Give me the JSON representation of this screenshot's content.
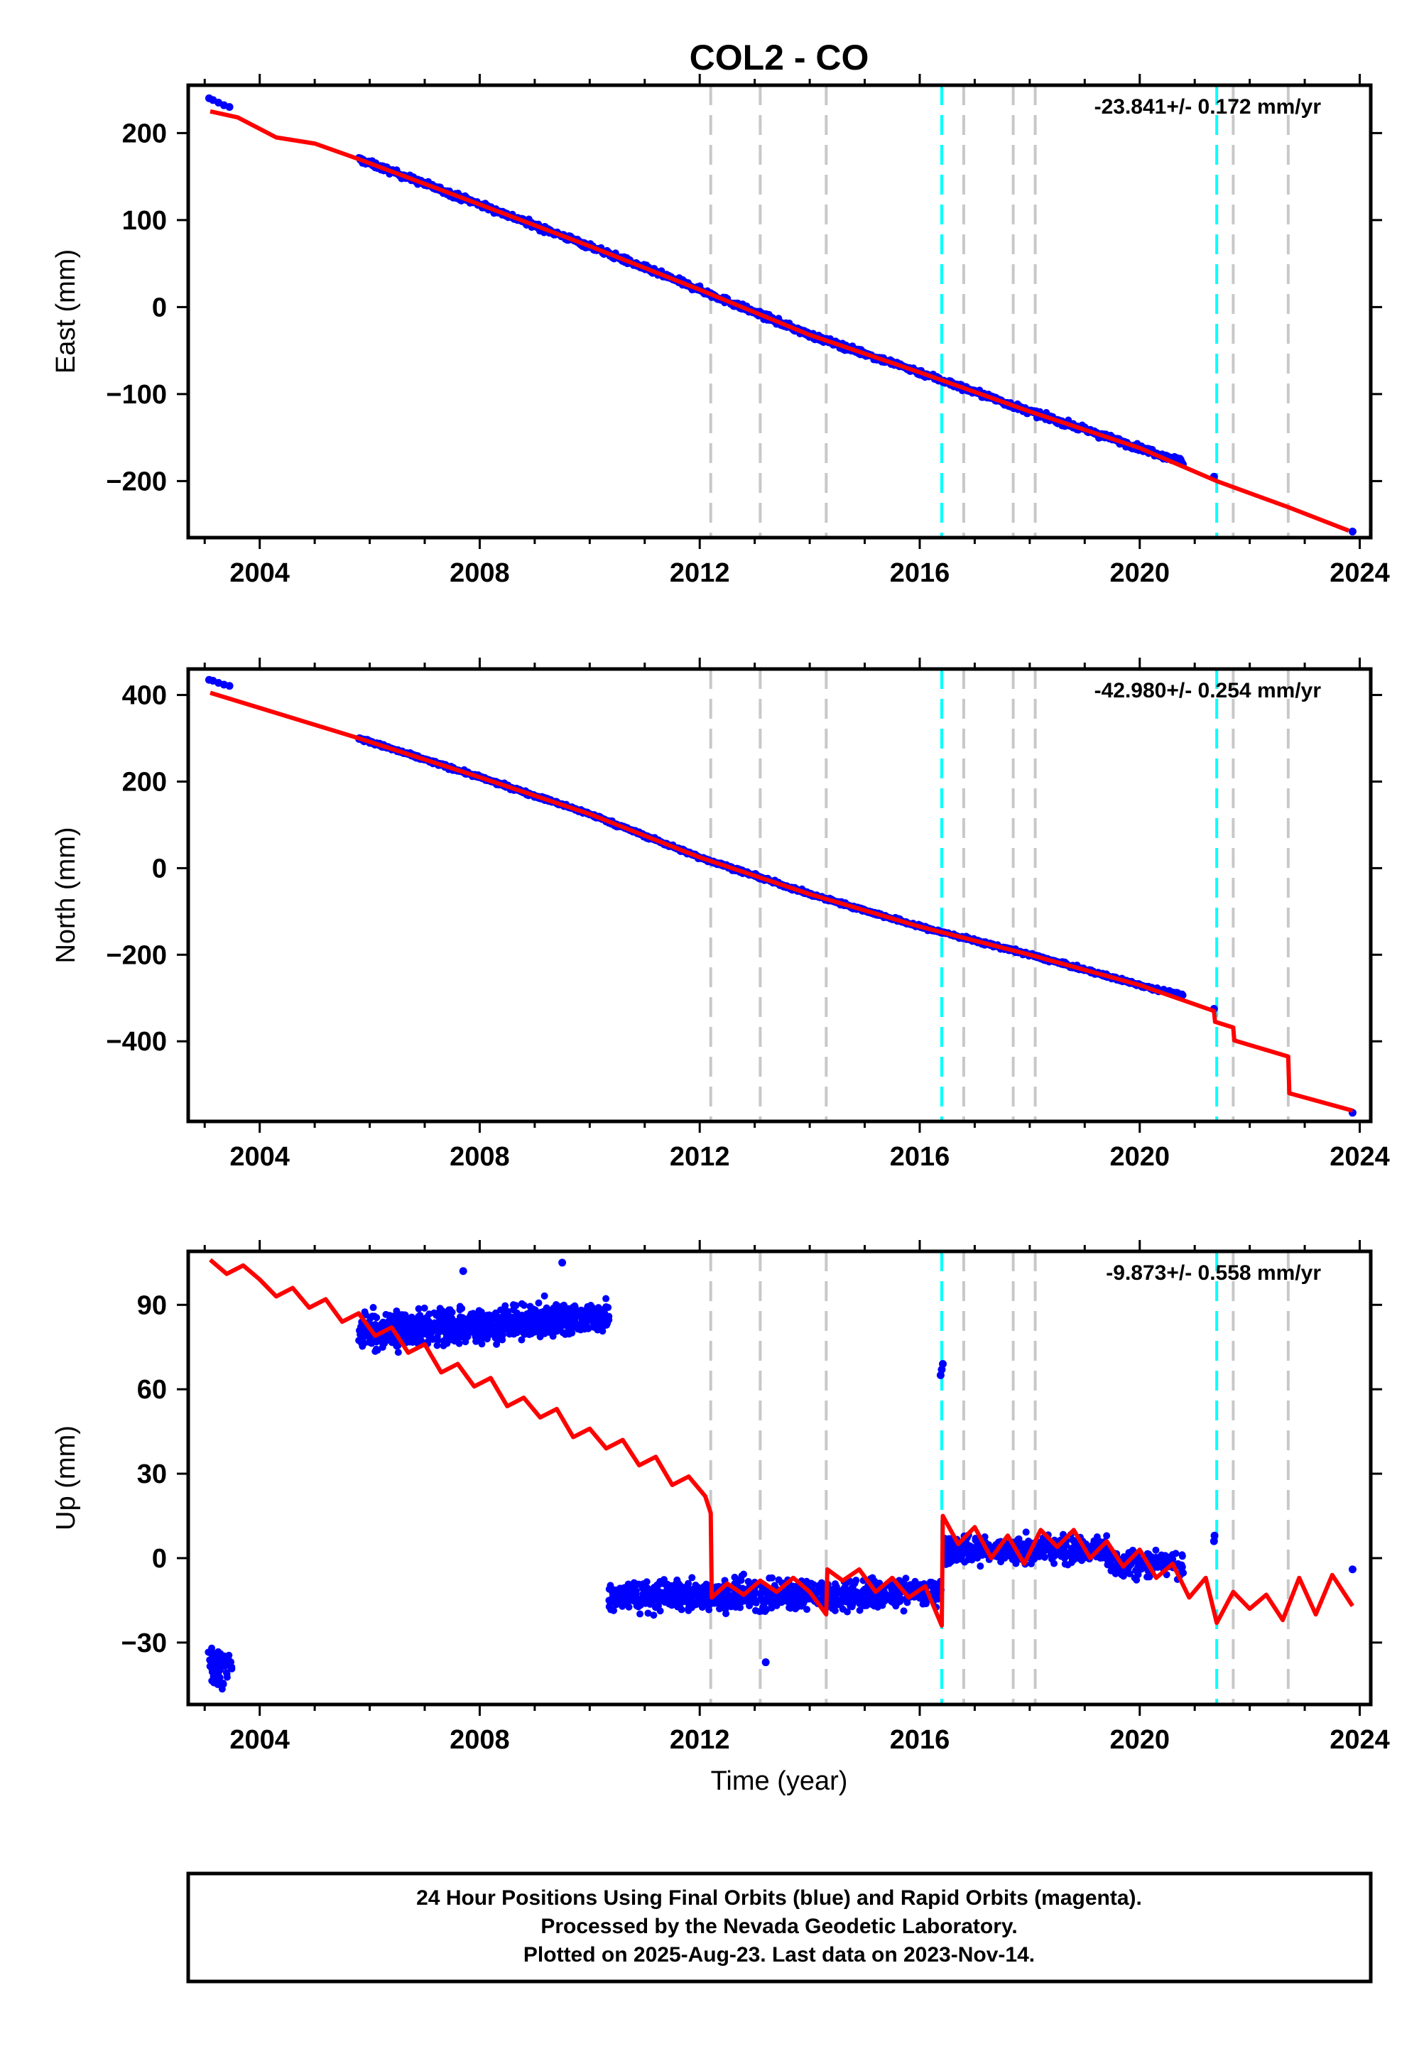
{
  "title": "COL2 - CO",
  "xlabel": "Time (year)",
  "footer": {
    "line1": "24 Hour Positions Using Final Orbits (blue) and Rapid Orbits (magenta).",
    "line2": "Processed by the Nevada Geodetic Laboratory.",
    "line3": "Plotted on 2025-Aug-23. Last data on 2023-Nov-14."
  },
  "colors": {
    "data": "#0000ff",
    "model": "#ff0000",
    "equipment_line": "#c8c8c8",
    "earthquake_line": "#00ffff"
  },
  "chart_data": [
    {
      "type": "scatter",
      "id": "east",
      "ylabel": "East (mm)",
      "rate_label": "-23.841+/- 0.172 mm/yr",
      "xlim": [
        2002.7,
        2024.2
      ],
      "ylim": [
        -265,
        255
      ],
      "xticks": [
        2004,
        2008,
        2012,
        2016,
        2020,
        2024
      ],
      "yticks": [
        -200,
        -100,
        0,
        100,
        200
      ],
      "equipment_changes": [
        2012.2,
        2013.1,
        2014.3,
        2016.8,
        2017.7,
        2018.1,
        2021.7,
        2022.7
      ],
      "earthquakes": [
        2016.4,
        2021.4
      ],
      "series": [
        {
          "kind": "points",
          "x": [
            2003.08,
            2003.15,
            2003.25,
            2003.35,
            2003.45
          ],
          "y": [
            240,
            238,
            235,
            232,
            230
          ]
        },
        {
          "kind": "band",
          "x": [
            2005.8,
            2008.0,
            2010.0,
            2012.0,
            2014.0,
            2016.0,
            2018.0,
            2020.0,
            2020.8
          ],
          "y": [
            170,
            118,
            70,
            20,
            -32,
            -75,
            -120,
            -162,
            -178
          ],
          "spread": 6
        },
        {
          "kind": "points",
          "x": [
            2021.35,
            2023.87
          ],
          "y": [
            -195,
            -258
          ]
        },
        {
          "kind": "line",
          "name": "model",
          "x": [
            2003.1,
            2003.6,
            2004.3,
            2005.0,
            2005.8,
            2008.0,
            2010.0,
            2012.0,
            2014.0,
            2016.0,
            2018.0,
            2020.0,
            2021.4,
            2022.7,
            2023.8
          ],
          "y": [
            225,
            218,
            195,
            188,
            170,
            118,
            70,
            20,
            -32,
            -75,
            -120,
            -162,
            -200,
            -230,
            -257
          ]
        }
      ]
    },
    {
      "type": "scatter",
      "id": "north",
      "ylabel": "North (mm)",
      "rate_label": "-42.980+/- 0.254 mm/yr",
      "xlim": [
        2002.7,
        2024.2
      ],
      "ylim": [
        -585,
        460
      ],
      "xticks": [
        2004,
        2008,
        2012,
        2016,
        2020,
        2024
      ],
      "yticks": [
        -400,
        -200,
        0,
        200,
        400
      ],
      "equipment_changes": [
        2012.2,
        2013.1,
        2014.3,
        2016.8,
        2017.7,
        2018.1,
        2021.7,
        2022.7
      ],
      "earthquakes": [
        2016.4,
        2021.4
      ],
      "series": [
        {
          "kind": "points",
          "x": [
            2003.08,
            2003.15,
            2003.25,
            2003.35,
            2003.45
          ],
          "y": [
            435,
            433,
            428,
            424,
            421
          ]
        },
        {
          "kind": "band",
          "x": [
            2005.8,
            2008.0,
            2010.0,
            2012.0,
            2014.0,
            2016.0,
            2018.0,
            2020.0,
            2020.8
          ],
          "y": [
            300,
            210,
            125,
            25,
            -60,
            -135,
            -200,
            -270,
            -295
          ],
          "spread": 7
        },
        {
          "kind": "points",
          "x": [
            2021.35,
            2023.87
          ],
          "y": [
            -325,
            -565
          ]
        },
        {
          "kind": "line",
          "name": "model",
          "x": [
            2003.1,
            2005.8,
            2008.0,
            2010.0,
            2012.0,
            2014.0,
            2016.0,
            2018.0,
            2020.0,
            2021.35,
            2021.37,
            2021.7,
            2021.72,
            2022.7,
            2022.72,
            2023.87
          ],
          "y": [
            405,
            300,
            210,
            125,
            25,
            -60,
            -135,
            -200,
            -270,
            -330,
            -355,
            -368,
            -398,
            -435,
            -520,
            -560
          ]
        }
      ]
    },
    {
      "type": "scatter",
      "id": "up",
      "ylabel": "Up (mm)",
      "rate_label": "-9.873+/- 0.558 mm/yr",
      "xlim": [
        2002.7,
        2024.2
      ],
      "ylim": [
        -52,
        109
      ],
      "xticks": [
        2004,
        2008,
        2012,
        2016,
        2020,
        2024
      ],
      "yticks": [
        -30,
        0,
        30,
        60,
        90
      ],
      "equipment_changes": [
        2012.2,
        2013.1,
        2014.3,
        2016.8,
        2017.7,
        2018.1,
        2021.7,
        2022.7
      ],
      "earthquakes": [
        2016.4,
        2021.4
      ],
      "series": [
        {
          "kind": "cloud",
          "x0": 2003.05,
          "x1": 2003.5,
          "y": -38,
          "spread": 11,
          "n": 60
        },
        {
          "kind": "cloud",
          "x0": 2005.8,
          "x1": 2010.35,
          "y": 83,
          "spread": 10,
          "n": 900,
          "slope": 1.2
        },
        {
          "kind": "cloud",
          "x0": 2010.35,
          "x1": 2016.4,
          "y": -13,
          "spread": 9,
          "n": 900,
          "slope": 0.2
        },
        {
          "kind": "cloud",
          "x0": 2016.45,
          "x1": 2019.4,
          "y": 3,
          "spread": 8,
          "n": 450
        },
        {
          "kind": "cloud",
          "x0": 2019.4,
          "x1": 2020.8,
          "y": -2,
          "spread": 8,
          "n": 150
        },
        {
          "kind": "points",
          "x": [
            2016.38,
            2016.4,
            2016.42,
            2021.35,
            2021.36,
            2023.87,
            2013.2,
            2007.7,
            2009.5
          ],
          "y": [
            65,
            67,
            69,
            6,
            8,
            -4,
            -37,
            102,
            105
          ]
        },
        {
          "kind": "line",
          "name": "model",
          "x": [
            2003.1,
            2003.4,
            2003.7,
            2004.0,
            2004.3,
            2004.6,
            2004.9,
            2005.2,
            2005.5,
            2005.8,
            2006.1,
            2006.4,
            2006.7,
            2007.0,
            2007.3,
            2007.6,
            2007.9,
            2008.2,
            2008.5,
            2008.8,
            2009.1,
            2009.4,
            2009.7,
            2010.0,
            2010.3,
            2010.6,
            2010.9,
            2011.2,
            2011.5,
            2011.8,
            2012.1,
            2012.2,
            2012.22,
            2012.5,
            2012.8,
            2013.1,
            2013.4,
            2013.7,
            2014.0,
            2014.3,
            2014.32,
            2014.6,
            2014.9,
            2015.2,
            2015.5,
            2015.8,
            2016.1,
            2016.4,
            2016.42,
            2016.7,
            2017.0,
            2017.3,
            2017.6,
            2017.9,
            2018.2,
            2018.5,
            2018.8,
            2019.1,
            2019.4,
            2019.7,
            2020.0,
            2020.3,
            2020.6,
            2020.9,
            2021.2,
            2021.4,
            2021.7,
            2022.0,
            2022.3,
            2022.6,
            2022.9,
            2023.2,
            2023.5,
            2023.87
          ],
          "y": [
            106,
            101,
            104,
            99,
            93,
            96,
            89,
            92,
            84,
            87,
            79,
            82,
            73,
            76,
            66,
            69,
            61,
            64,
            54,
            57,
            50,
            53,
            43,
            46,
            39,
            42,
            33,
            36,
            26,
            29,
            22,
            16,
            -14,
            -9,
            -13,
            -8,
            -12,
            -7,
            -12,
            -20,
            -4,
            -8,
            -4,
            -12,
            -7,
            -14,
            -10,
            -24,
            15,
            5,
            11,
            0,
            8,
            -2,
            10,
            4,
            10,
            0,
            6,
            -3,
            3,
            -7,
            -2,
            -14,
            -7,
            -23,
            -12,
            -18,
            -13,
            -22,
            -7,
            -20,
            -6,
            -17
          ]
        }
      ]
    }
  ]
}
